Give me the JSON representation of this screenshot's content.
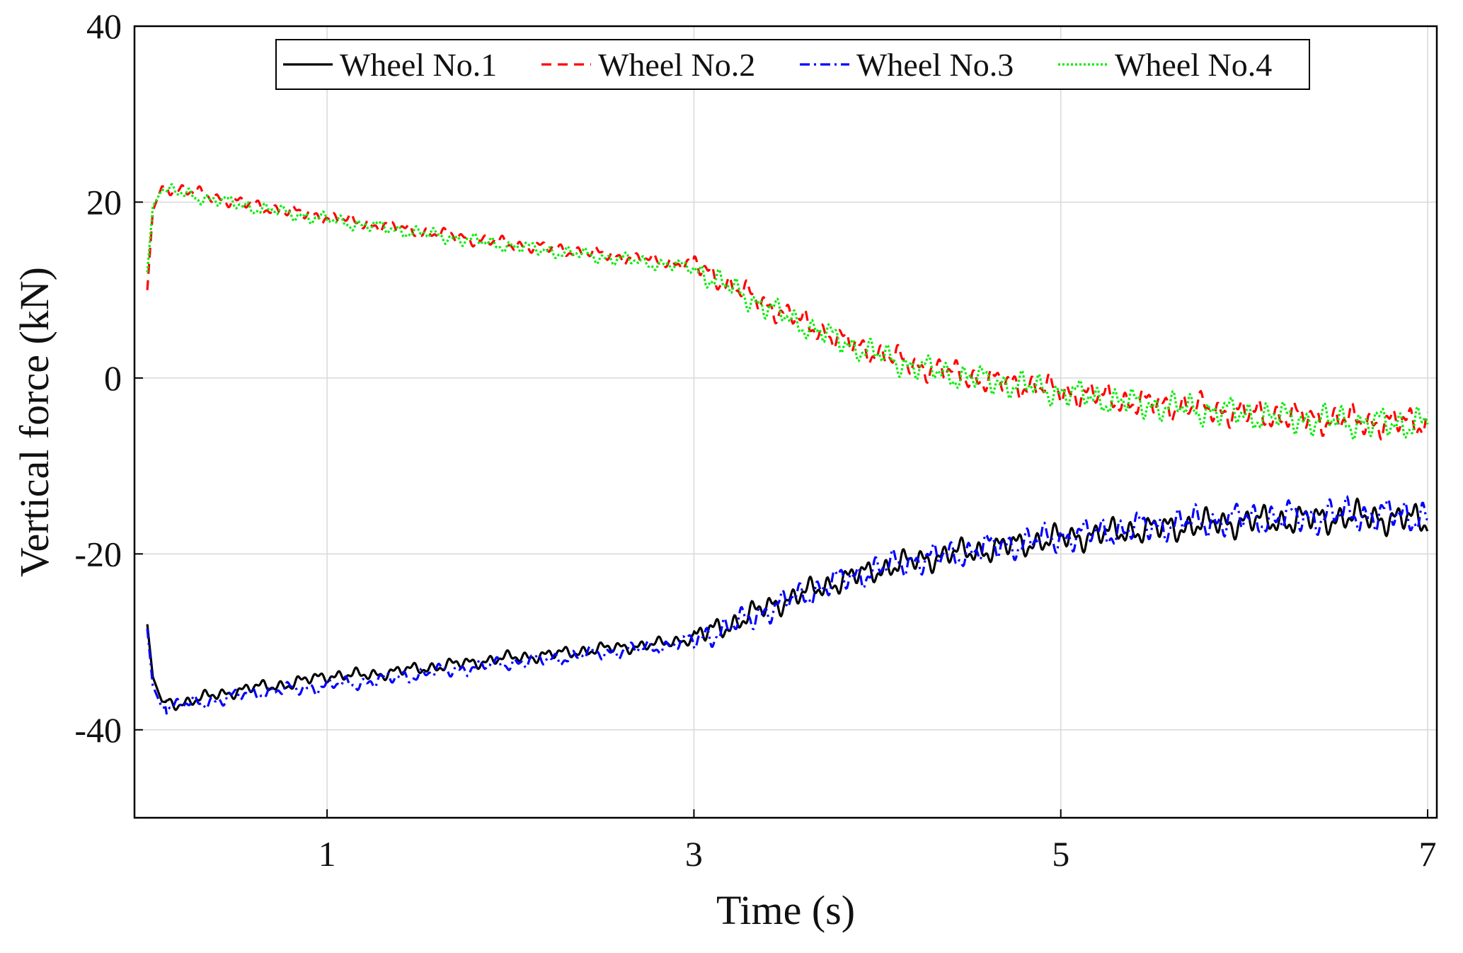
{
  "chart_data": {
    "type": "line",
    "title": "",
    "xlabel": "Time (s)",
    "ylabel": "Vertical force (kN)",
    "xlim": [
      0,
      7
    ],
    "ylim": [
      -50,
      40
    ],
    "xticks": [
      1,
      3,
      5,
      7
    ],
    "yticks": [
      40,
      20,
      0,
      -20,
      -40
    ],
    "xtick_labels": [
      "1",
      "3",
      "5",
      "7"
    ],
    "ytick_labels": [
      "40",
      "20",
      "0",
      "-20",
      "-40"
    ],
    "grid": true,
    "legend_position": "top",
    "series": [
      {
        "name": "Wheel No.1",
        "color": "#000000",
        "dash": "solid",
        "noise": 0.8,
        "points": [
          [
            0.02,
            -28
          ],
          [
            0.05,
            -34
          ],
          [
            0.1,
            -36.8
          ],
          [
            0.2,
            -37
          ],
          [
            0.4,
            -36
          ],
          [
            0.6,
            -35.2
          ],
          [
            0.8,
            -34.8
          ],
          [
            1.0,
            -33.8
          ],
          [
            1.2,
            -33.8
          ],
          [
            1.4,
            -33.3
          ],
          [
            1.6,
            -32.8
          ],
          [
            1.8,
            -32.3
          ],
          [
            2.0,
            -31.8
          ],
          [
            2.2,
            -31.5
          ],
          [
            2.4,
            -31.0
          ],
          [
            2.6,
            -30.6
          ],
          [
            2.8,
            -30.3
          ],
          [
            3.0,
            -29.5
          ],
          [
            3.2,
            -28.0
          ],
          [
            3.4,
            -26.0
          ],
          [
            3.6,
            -24.5
          ],
          [
            3.8,
            -23.0
          ],
          [
            4.0,
            -21.8
          ],
          [
            4.2,
            -20.8
          ],
          [
            4.4,
            -20.0
          ],
          [
            4.6,
            -19.5
          ],
          [
            4.8,
            -18.8
          ],
          [
            5.0,
            -18.2
          ],
          [
            5.2,
            -17.8
          ],
          [
            5.4,
            -17.3
          ],
          [
            5.6,
            -17.0
          ],
          [
            5.8,
            -16.6
          ],
          [
            6.0,
            -16.3
          ],
          [
            6.2,
            -16.2
          ],
          [
            6.4,
            -16.0
          ],
          [
            6.6,
            -15.8
          ],
          [
            6.8,
            -15.9
          ],
          [
            7.0,
            -16.3
          ]
        ]
      },
      {
        "name": "Wheel No.2",
        "color": "#ff0000",
        "dash": "dashed",
        "noise": 0.8,
        "points": [
          [
            0.02,
            10
          ],
          [
            0.05,
            19
          ],
          [
            0.1,
            21.8
          ],
          [
            0.2,
            21.4
          ],
          [
            0.4,
            20.5
          ],
          [
            0.6,
            19.6
          ],
          [
            0.8,
            18.9
          ],
          [
            1.0,
            18.3
          ],
          [
            1.2,
            17.6
          ],
          [
            1.4,
            17.0
          ],
          [
            1.6,
            16.4
          ],
          [
            1.8,
            15.8
          ],
          [
            2.0,
            15.2
          ],
          [
            2.2,
            14.8
          ],
          [
            2.4,
            14.3
          ],
          [
            2.6,
            13.8
          ],
          [
            2.8,
            13.3
          ],
          [
            3.0,
            12.9
          ],
          [
            3.2,
            10.5
          ],
          [
            3.4,
            8.3
          ],
          [
            3.6,
            6.3
          ],
          [
            3.8,
            4.3
          ],
          [
            4.0,
            2.8
          ],
          [
            4.2,
            1.5
          ],
          [
            4.4,
            0.6
          ],
          [
            4.6,
            -0.3
          ],
          [
            4.8,
            -0.8
          ],
          [
            5.0,
            -1.5
          ],
          [
            5.2,
            -2.0
          ],
          [
            5.4,
            -2.8
          ],
          [
            5.6,
            -3.1
          ],
          [
            5.8,
            -3.5
          ],
          [
            6.0,
            -4.0
          ],
          [
            6.2,
            -4.3
          ],
          [
            6.4,
            -4.6
          ],
          [
            6.6,
            -4.9
          ],
          [
            6.8,
            -5.1
          ],
          [
            7.0,
            -5.0
          ]
        ]
      },
      {
        "name": "Wheel No.3",
        "color": "#0000ff",
        "dash": "dashdot",
        "noise": 0.9,
        "points": [
          [
            0.02,
            -28.5
          ],
          [
            0.05,
            -35
          ],
          [
            0.1,
            -37.5
          ],
          [
            0.2,
            -37.2
          ],
          [
            0.4,
            -36.6
          ],
          [
            0.6,
            -35.8
          ],
          [
            0.8,
            -35.4
          ],
          [
            1.0,
            -35.0
          ],
          [
            1.2,
            -34.6
          ],
          [
            1.4,
            -34.0
          ],
          [
            1.6,
            -33.4
          ],
          [
            1.8,
            -32.9
          ],
          [
            2.0,
            -32.4
          ],
          [
            2.2,
            -32.0
          ],
          [
            2.4,
            -31.5
          ],
          [
            2.6,
            -31.0
          ],
          [
            2.8,
            -30.6
          ],
          [
            3.0,
            -29.8
          ],
          [
            3.2,
            -28.3
          ],
          [
            3.4,
            -26.4
          ],
          [
            3.6,
            -24.6
          ],
          [
            3.8,
            -23.0
          ],
          [
            4.0,
            -21.7
          ],
          [
            4.2,
            -20.7
          ],
          [
            4.4,
            -20.2
          ],
          [
            4.6,
            -19.3
          ],
          [
            4.8,
            -18.7
          ],
          [
            5.0,
            -18.1
          ],
          [
            5.2,
            -17.6
          ],
          [
            5.4,
            -17.1
          ],
          [
            5.6,
            -16.6
          ],
          [
            5.8,
            -16.3
          ],
          [
            6.0,
            -16.0
          ],
          [
            6.2,
            -15.9
          ],
          [
            6.4,
            -15.7
          ],
          [
            6.6,
            -15.5
          ],
          [
            6.8,
            -15.6
          ],
          [
            7.0,
            -15.6
          ]
        ]
      },
      {
        "name": "Wheel No.4",
        "color": "#00ee00",
        "dash": "dotted",
        "noise": 0.85,
        "points": [
          [
            0.02,
            12
          ],
          [
            0.05,
            19.5
          ],
          [
            0.1,
            21.4
          ],
          [
            0.2,
            21.0
          ],
          [
            0.4,
            20.2
          ],
          [
            0.6,
            19.4
          ],
          [
            0.8,
            18.7
          ],
          [
            1.0,
            18.0
          ],
          [
            1.2,
            17.4
          ],
          [
            1.4,
            16.8
          ],
          [
            1.6,
            16.2
          ],
          [
            1.8,
            15.6
          ],
          [
            2.0,
            15.0
          ],
          [
            2.2,
            14.5
          ],
          [
            2.4,
            14.0
          ],
          [
            2.6,
            13.5
          ],
          [
            2.8,
            13.0
          ],
          [
            3.0,
            12.5
          ],
          [
            3.2,
            10.2
          ],
          [
            3.4,
            8.0
          ],
          [
            3.6,
            6.0
          ],
          [
            3.8,
            4.2
          ],
          [
            4.0,
            2.6
          ],
          [
            4.2,
            1.3
          ],
          [
            4.4,
            0.4
          ],
          [
            4.6,
            -0.3
          ],
          [
            4.8,
            -0.9
          ],
          [
            5.0,
            -1.6
          ],
          [
            5.2,
            -2.3
          ],
          [
            5.4,
            -2.9
          ],
          [
            5.6,
            -3.3
          ],
          [
            5.8,
            -3.7
          ],
          [
            6.0,
            -4.1
          ],
          [
            6.2,
            -4.5
          ],
          [
            6.4,
            -4.8
          ],
          [
            6.6,
            -5.0
          ],
          [
            6.8,
            -5.3
          ],
          [
            7.0,
            -4.8
          ]
        ]
      }
    ]
  }
}
